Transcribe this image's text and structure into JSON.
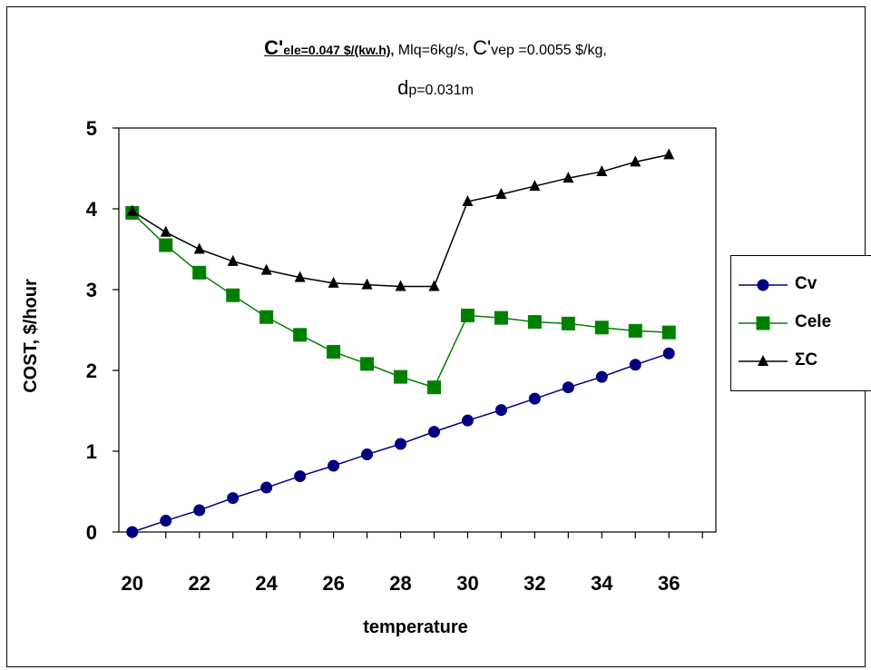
{
  "title": {
    "line1_part1_main": "C'",
    "line1_part1_sub": "ele=0.047 $/(kw.h),",
    "line1_part2": " Mlq=6kg/s, ",
    "line1_part3_main": "C'",
    "line1_part3_rest": "vep =0.0055 $/kg,",
    "line2_main": "d",
    "line2_sub": "p=0.031m"
  },
  "chart_data": {
    "type": "line",
    "title": "C'ele=0.047 $/(kw.h), Mlq=6kg/s, C'vep =0.0055 $/kg, dp=0.031m",
    "xlabel": "temperature",
    "ylabel": "COST, $/hour",
    "xlim": [
      19.6,
      37.4
    ],
    "ylim": [
      0,
      5
    ],
    "xticks": [
      20,
      22,
      24,
      26,
      28,
      30,
      32,
      34,
      36
    ],
    "yticks": [
      0,
      1,
      2,
      3,
      4,
      5
    ],
    "grid": false,
    "legend_position": "right",
    "x": [
      20,
      21,
      22,
      23,
      24,
      25,
      26,
      27,
      28,
      29,
      30,
      31,
      32,
      33,
      34,
      35,
      36
    ],
    "series": [
      {
        "name": "Cv",
        "color": "#000080",
        "marker": "circle",
        "values": [
          0.0,
          0.14,
          0.27,
          0.42,
          0.55,
          0.69,
          0.82,
          0.96,
          1.09,
          1.24,
          1.38,
          1.51,
          1.65,
          1.79,
          1.92,
          2.07,
          2.21
        ]
      },
      {
        "name": "Cele",
        "color": "#008000",
        "marker": "square",
        "values": [
          3.95,
          3.55,
          3.21,
          2.93,
          2.66,
          2.44,
          2.23,
          2.08,
          1.92,
          1.79,
          2.68,
          2.65,
          2.6,
          2.58,
          2.53,
          2.49,
          2.47
        ]
      },
      {
        "name": "ΣC",
        "color": "#000000",
        "marker": "triangle",
        "values": [
          3.97,
          3.71,
          3.5,
          3.35,
          3.24,
          3.15,
          3.08,
          3.06,
          3.04,
          3.04,
          4.09,
          4.18,
          4.28,
          4.38,
          4.46,
          4.58,
          4.67
        ]
      }
    ]
  }
}
